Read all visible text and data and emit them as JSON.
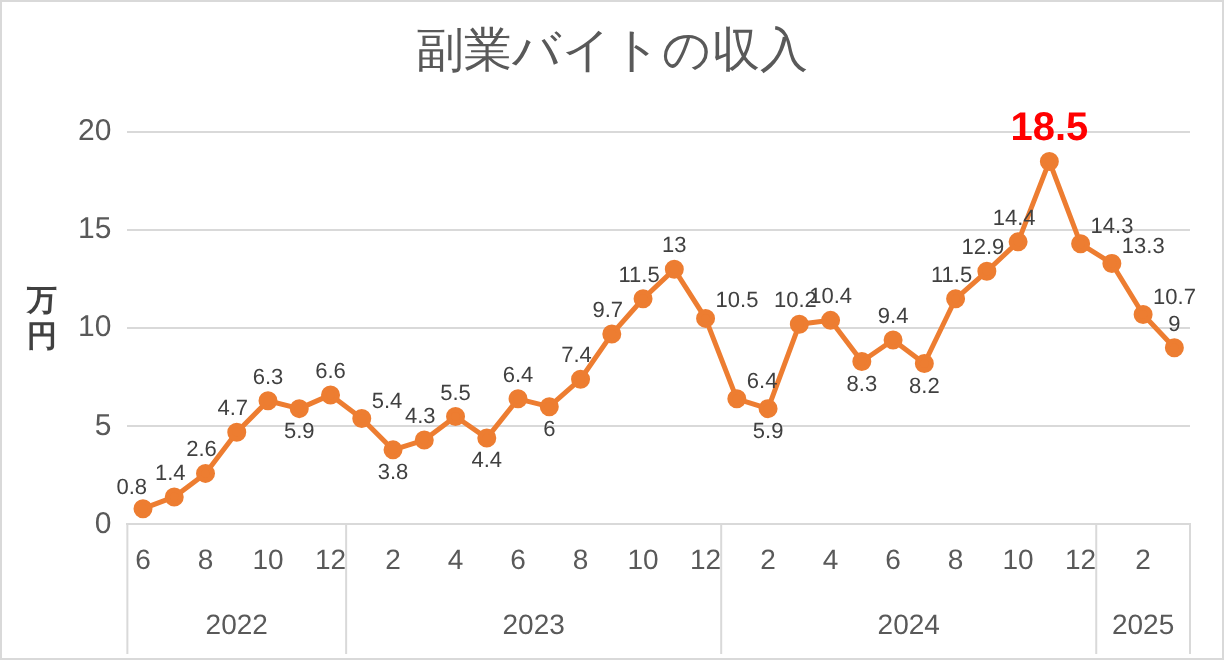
{
  "chart_data": {
    "type": "line",
    "title": "副業バイトの収入",
    "ylabel": "万円",
    "categories": [
      "6",
      null,
      "8",
      null,
      "10",
      null,
      "12",
      null,
      "2",
      null,
      "4",
      null,
      "6",
      null,
      "8",
      null,
      "10",
      null,
      "12",
      null,
      "2",
      null,
      "4",
      null,
      "6",
      null,
      "8",
      null,
      "10",
      null,
      "12",
      null,
      "2",
      null
    ],
    "annotations": [
      "2022",
      "2023",
      "2024",
      "2025"
    ],
    "series": [
      {
        "color": "#ed7d31",
        "values": [
          0.8,
          1.4,
          2.6,
          4.7,
          6.3,
          5.9,
          6.6,
          5.4,
          3.8,
          4.3,
          5.5,
          4.4,
          6.4,
          6,
          7.4,
          9.7,
          11.5,
          13,
          10.5,
          6.4,
          5.9,
          10.2,
          10.4,
          8.3,
          9.4,
          8.2,
          11.5,
          12.9,
          14.4,
          18.5,
          14.3,
          13.3,
          10.7,
          9
        ]
      }
    ],
    "ylim": [
      0,
      20
    ],
    "yticks": [
      0,
      5,
      10,
      15,
      20
    ],
    "grid": "y",
    "marker": "circle",
    "line_style": "solid",
    "data_labels": true
  }
}
